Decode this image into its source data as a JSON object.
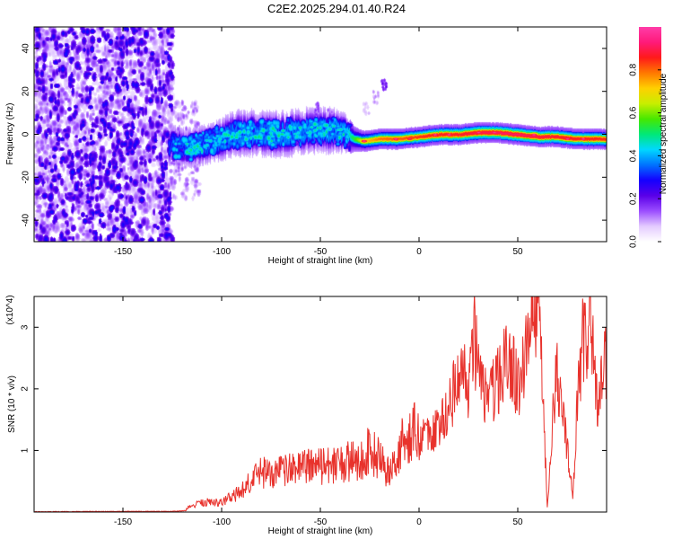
{
  "title": "C2E2.2025.294.01.40.R24",
  "chart_data": [
    {
      "type": "heatmap",
      "name": "spectrogram",
      "xlabel": "Height of straight line (km)",
      "ylabel": "Frequency (Hz)",
      "xlim": [
        -195,
        95
      ],
      "ylim": [
        -50,
        50
      ],
      "xticks": [
        -150,
        -100,
        -50,
        0,
        50
      ],
      "yticks": [
        -40,
        -20,
        0,
        20,
        40
      ],
      "colorbar": {
        "label": "Normalized spectral amplitude",
        "range": [
          0,
          1
        ],
        "ticks": [
          0.0,
          0.2,
          0.4,
          0.6,
          0.8
        ],
        "stops": [
          "#ffffff",
          "#e4ccff",
          "#9b4dff",
          "#5a00e8",
          "#1400ff",
          "#0072ff",
          "#00d8ff",
          "#00e878",
          "#46e800",
          "#c8ee00",
          "#ffd000",
          "#ff7800",
          "#ff1a1a",
          "#ff1a7a",
          "#ff3ca8"
        ]
      },
      "noise_region": {
        "x_from": -195,
        "x_to": -125,
        "freq_spread": 50,
        "level": 0.17
      },
      "ridge": {
        "x": [
          -127,
          -115,
          -105,
          -95,
          -85,
          -75,
          -65,
          -55,
          -45,
          -38,
          -33,
          -28,
          -20,
          -10,
          0,
          10,
          20,
          30,
          40,
          50,
          60,
          70,
          80,
          90,
          95
        ],
        "freq": [
          -5,
          -6,
          -4,
          0,
          1,
          0,
          1,
          2,
          2,
          1,
          -2,
          -3,
          -2,
          -2,
          -1,
          0,
          0,
          1,
          1,
          0,
          -1,
          -1,
          -2,
          -2,
          -2
        ],
        "width": [
          6,
          6,
          6,
          7,
          7,
          7,
          7,
          7,
          7,
          6,
          3,
          2.5,
          2.5,
          2.5,
          2.5,
          2.5,
          2.5,
          2.5,
          2.5,
          2.5,
          2.5,
          2.5,
          2.5,
          2.5,
          2.5
        ],
        "amp": [
          0.33,
          0.35,
          0.36,
          0.37,
          0.38,
          0.38,
          0.38,
          0.38,
          0.38,
          0.4,
          0.55,
          0.72,
          0.8,
          0.82,
          0.85,
          0.87,
          0.88,
          0.9,
          0.92,
          0.92,
          0.9,
          0.88,
          0.87,
          0.86,
          0.85
        ]
      },
      "hot_spots": [
        {
          "x": -28,
          "freq": -3,
          "amp": 1.0
        },
        {
          "x": -12,
          "freq": -2,
          "amp": 1.0
        },
        {
          "x": -5,
          "freq": -2,
          "amp": 0.95
        },
        {
          "x": 8,
          "freq": 0,
          "amp": 1.0
        },
        {
          "x": 15,
          "freq": 0,
          "amp": 1.0
        },
        {
          "x": 30,
          "freq": 1,
          "amp": 1.0
        },
        {
          "x": 38,
          "freq": 1,
          "amp": 1.0
        },
        {
          "x": 58,
          "freq": 0,
          "amp": 1.0
        },
        {
          "x": 75,
          "freq": -2,
          "amp": 1.0
        },
        {
          "x": 83,
          "freq": -2,
          "amp": 1.0
        }
      ],
      "faint_features": [
        {
          "x": -18,
          "freq": 24,
          "amp": 0.22
        },
        {
          "x": -22,
          "freq": 17,
          "amp": 0.12
        },
        {
          "x": -27,
          "freq": 12,
          "amp": 0.1
        },
        {
          "x": -52,
          "freq": 12,
          "amp": 0.18
        },
        {
          "x": -45,
          "freq": 9,
          "amp": 0.15
        }
      ]
    },
    {
      "type": "line",
      "name": "snr",
      "color": "#e8322c",
      "xlabel": "Height of straight line (km)",
      "ylabel": "SNR (10 * v/v)",
      "y_scale_note": "(x10^4)",
      "xlim": [
        -195,
        95
      ],
      "ylim": [
        0,
        3.5
      ],
      "xticks": [
        -150,
        -100,
        -50,
        0,
        50
      ],
      "yticks": [
        1,
        2,
        3
      ],
      "x": [
        -195,
        -150,
        -125,
        -118,
        -110,
        -100,
        -90,
        -80,
        -75,
        -70,
        -60,
        -50,
        -40,
        -30,
        -25,
        -20,
        -15,
        -10,
        -5,
        0,
        5,
        10,
        15,
        20,
        25,
        28,
        30,
        35,
        40,
        45,
        50,
        55,
        58,
        60,
        62,
        65,
        68,
        70,
        75,
        78,
        80,
        83,
        85,
        88,
        90,
        95
      ],
      "y": [
        0.01,
        0.02,
        0.02,
        0.05,
        0.12,
        0.12,
        0.25,
        0.5,
        0.45,
        0.5,
        0.55,
        0.55,
        0.6,
        0.65,
        0.75,
        0.65,
        0.45,
        0.8,
        0.95,
        1.1,
        1.3,
        1.4,
        1.7,
        2.2,
        2.1,
        2.8,
        2.3,
        1.8,
        2.1,
        2.6,
        2.0,
        2.8,
        3.4,
        3.3,
        2.5,
        0.05,
        1.8,
        2.3,
        1.0,
        0.25,
        1.6,
        2.9,
        2.8,
        2.9,
        1.8,
        2.5
      ]
    }
  ]
}
